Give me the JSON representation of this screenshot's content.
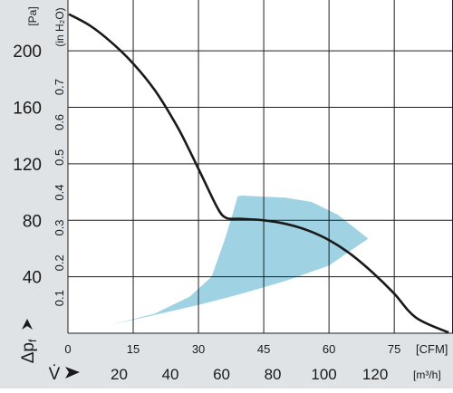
{
  "chart_data": {
    "type": "line",
    "title": "",
    "axes": {
      "y_left": {
        "unit": "[Pa]",
        "ticks": [
          40,
          80,
          120,
          160,
          200
        ],
        "range": [
          0,
          236
        ]
      },
      "y_inner": {
        "unit": "(in H₂O)",
        "ticks": [
          "0.1",
          "0.2",
          "0.3",
          "0.4",
          "0.5",
          "0.6",
          "0.7"
        ],
        "tick_values": [
          0.1,
          0.2,
          0.3,
          0.4,
          0.5,
          0.6,
          0.7
        ]
      },
      "x_top": {
        "unit": "[CFM]",
        "ticks": [
          0,
          15,
          30,
          45,
          60,
          75
        ],
        "range": [
          0,
          88.5
        ]
      },
      "x_bottom": {
        "unit": "[m³/h]",
        "ticks": [
          20,
          40,
          60,
          80,
          100,
          120
        ],
        "range": [
          0,
          150.4
        ]
      }
    },
    "axis_symbols": {
      "pressure": "Δpf",
      "flow": "V̇"
    },
    "grid": true,
    "series": [
      {
        "kind": "curve",
        "units": "x in CFM, y in Pa",
        "color": "#1a1a1a",
        "points": [
          [
            0.2,
            226
          ],
          [
            5,
            218
          ],
          [
            10,
            206
          ],
          [
            15,
            191
          ],
          [
            20,
            172
          ],
          [
            25,
            147
          ],
          [
            28,
            129
          ],
          [
            31,
            110
          ],
          [
            33,
            97
          ],
          [
            34.5,
            88
          ],
          [
            35.5,
            83.5
          ],
          [
            36.5,
            81.5
          ],
          [
            37.5,
            81
          ],
          [
            40,
            81
          ],
          [
            45,
            80
          ],
          [
            50,
            77.5
          ],
          [
            55,
            73
          ],
          [
            60,
            66
          ],
          [
            65,
            56
          ],
          [
            70,
            43
          ],
          [
            75,
            28
          ],
          [
            80,
            11
          ],
          [
            87.5,
            0.5
          ]
        ]
      },
      {
        "kind": "band",
        "units": "x in CFM, y in Pa",
        "color": "#9fd3e3",
        "points": [
          [
            0.2,
            0
          ],
          [
            10,
            6
          ],
          [
            20,
            14
          ],
          [
            28,
            26
          ],
          [
            33,
            40
          ],
          [
            36,
            66
          ],
          [
            38,
            86
          ],
          [
            39,
            97
          ],
          [
            40,
            97.5
          ],
          [
            50,
            96
          ],
          [
            56,
            93
          ],
          [
            62,
            84
          ],
          [
            69,
            67
          ],
          [
            60,
            48
          ],
          [
            50,
            37
          ],
          [
            40,
            28
          ],
          [
            30,
            20
          ],
          [
            20,
            13
          ],
          [
            10,
            6
          ],
          [
            0.2,
            0
          ]
        ]
      }
    ]
  }
}
